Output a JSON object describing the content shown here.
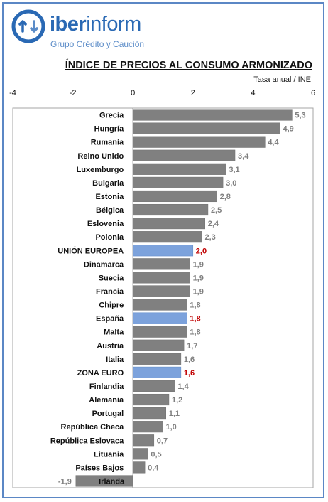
{
  "header": {
    "brand_bold": "iber",
    "brand_light": "inform",
    "tagline": "Grupo Crédito y Caución"
  },
  "colors": {
    "bar_default": "#808080",
    "bar_highlight": "#7ca2dc",
    "label_default": "#7f7f7f",
    "label_highlight": "#c00000",
    "brand": "#2a69b4",
    "frame": "#5b87c5"
  },
  "chart_data": {
    "type": "bar",
    "orientation": "horizontal",
    "title": "ÍNDICE DE PRECIOS AL CONSUMO ARMONIZADO",
    "subtitle": "Tasa anual / INE",
    "xlim": [
      -4,
      6
    ],
    "x_ticks": [
      "-4",
      "-2",
      "0",
      "2",
      "4",
      "6"
    ],
    "grid": false,
    "legend": "none",
    "categories": [
      "Grecia",
      "Hungría",
      "Rumanía",
      "Reino Unido",
      "Luxemburgo",
      "Bulgaria",
      "Estonia",
      "Bélgica",
      "Eslovenia",
      "Polonia",
      "UNIÓN EUROPEA",
      "Dinamarca",
      "Suecia",
      "Francia",
      "Chipre",
      "España",
      "Malta",
      "Austria",
      "Italia",
      "ZONA EURO",
      "Finlandia",
      "Alemania",
      "Portugal",
      "República Checa",
      "República Eslovaca",
      "Lituania",
      "Países Bajos",
      "Irlanda"
    ],
    "values": [
      5.3,
      4.9,
      4.4,
      3.4,
      3.1,
      3.0,
      2.8,
      2.5,
      2.4,
      2.3,
      2.0,
      1.9,
      1.9,
      1.9,
      1.8,
      1.8,
      1.8,
      1.7,
      1.6,
      1.6,
      1.4,
      1.2,
      1.1,
      1.0,
      0.7,
      0.5,
      0.4,
      -1.9
    ],
    "value_labels": [
      "5,3",
      "4,9",
      "4,4",
      "3,4",
      "3,1",
      "3,0",
      "2,8",
      "2,5",
      "2,4",
      "2,3",
      "2,0",
      "1,9",
      "1,9",
      "1,9",
      "1,8",
      "1,8",
      "1,8",
      "1,7",
      "1,6",
      "1,6",
      "1,4",
      "1,2",
      "1,1",
      "1,0",
      "0,7",
      "0,5",
      "0,4",
      "-1,9"
    ],
    "highlighted": [
      "UNIÓN EUROPEA",
      "España",
      "ZONA EURO"
    ]
  }
}
